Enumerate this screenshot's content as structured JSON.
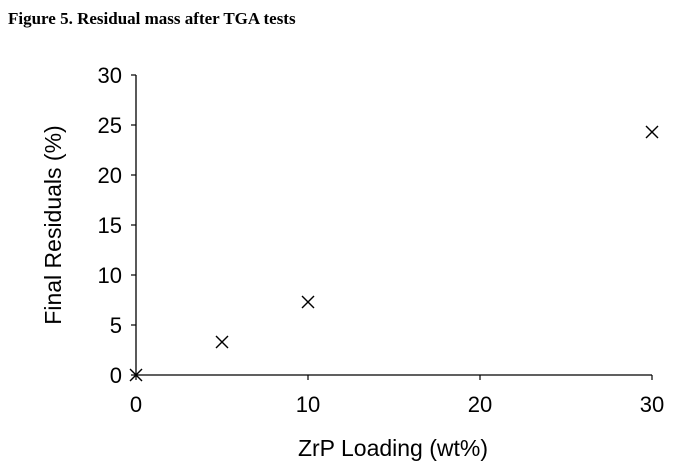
{
  "caption": "Figure 5. Residual mass after TGA tests",
  "chart_data": {
    "type": "scatter",
    "title": "",
    "xlabel": "ZrP Loading (wt%)",
    "ylabel": "Final Residuals (%)",
    "xlim": [
      0,
      30
    ],
    "ylim": [
      0,
      30
    ],
    "xticks": [
      0,
      10,
      20,
      30
    ],
    "yticks": [
      0,
      5,
      10,
      15,
      20,
      25,
      30
    ],
    "grid": false,
    "legend": "none",
    "marker": "x",
    "series": [
      {
        "x": [
          0,
          5,
          10,
          30
        ],
        "y": [
          0,
          3.3,
          7.3,
          24.3
        ]
      }
    ]
  }
}
